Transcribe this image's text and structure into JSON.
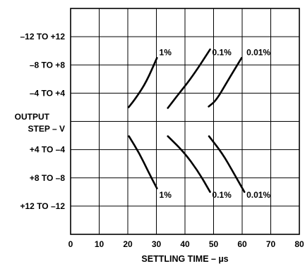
{
  "chart_data": {
    "type": "line",
    "xlabel": "SETTLING TIME – µs",
    "ylabel_lines": [
      "OUTPUT",
      "STEP – V"
    ],
    "xlim": [
      0,
      80
    ],
    "x_ticks": [
      "0",
      "10",
      "20",
      "30",
      "40",
      "50",
      "60",
      "70",
      "80"
    ],
    "y_tick_labels": [
      "–12 TO +12",
      "–8 TO +8",
      "–4 TO +4",
      "+4 TO –4",
      "+8 TO –8",
      "+12 TO –12"
    ],
    "grid": true,
    "series": [
      {
        "name": "1%",
        "direction": "rising",
        "points": [
          {
            "x": 20.3,
            "y": 2.0
          },
          {
            "x": 23.0,
            "y": 3.4
          },
          {
            "x": 26.5,
            "y": 5.6
          },
          {
            "x": 30.2,
            "y": 9.0
          }
        ]
      },
      {
        "name": "0.1%",
        "direction": "rising",
        "points": [
          {
            "x": 34.0,
            "y": 1.9
          },
          {
            "x": 38.0,
            "y": 4.0
          },
          {
            "x": 42.5,
            "y": 6.3
          },
          {
            "x": 48.8,
            "y": 10.2
          }
        ]
      },
      {
        "name": "0.01%",
        "direction": "rising",
        "points": [
          {
            "x": 48.3,
            "y": 2.1
          },
          {
            "x": 51.0,
            "y": 3.0
          },
          {
            "x": 55.0,
            "y": 5.8
          },
          {
            "x": 59.8,
            "y": 9.0
          }
        ]
      },
      {
        "name": "1%",
        "direction": "falling",
        "points": [
          {
            "x": 20.4,
            "y": -2.1
          },
          {
            "x": 24.0,
            "y": -4.5
          },
          {
            "x": 27.0,
            "y": -7.0
          },
          {
            "x": 30.2,
            "y": -9.5
          }
        ]
      },
      {
        "name": "0.1%",
        "direction": "falling",
        "points": [
          {
            "x": 34.0,
            "y": -2.1
          },
          {
            "x": 39.5,
            "y": -4.3
          },
          {
            "x": 44.5,
            "y": -7.0
          },
          {
            "x": 48.8,
            "y": -10.0
          }
        ]
      },
      {
        "name": "0.01%",
        "direction": "falling",
        "points": [
          {
            "x": 48.4,
            "y": -2.1
          },
          {
            "x": 53.0,
            "y": -4.5
          },
          {
            "x": 57.0,
            "y": -7.3
          },
          {
            "x": 60.8,
            "y": -10.0
          }
        ]
      }
    ],
    "annotations": [
      {
        "text": "1%",
        "x": 31.0,
        "y": 9.8
      },
      {
        "text": "0.1%",
        "x": 49.5,
        "y": 9.8
      },
      {
        "text": "0.01%",
        "x": 61.5,
        "y": 9.8
      },
      {
        "text": "1%",
        "x": 31.0,
        "y": -10.4
      },
      {
        "text": "0.1%",
        "x": 49.5,
        "y": -10.4
      },
      {
        "text": "0.01%",
        "x": 61.5,
        "y": -10.4
      }
    ]
  }
}
